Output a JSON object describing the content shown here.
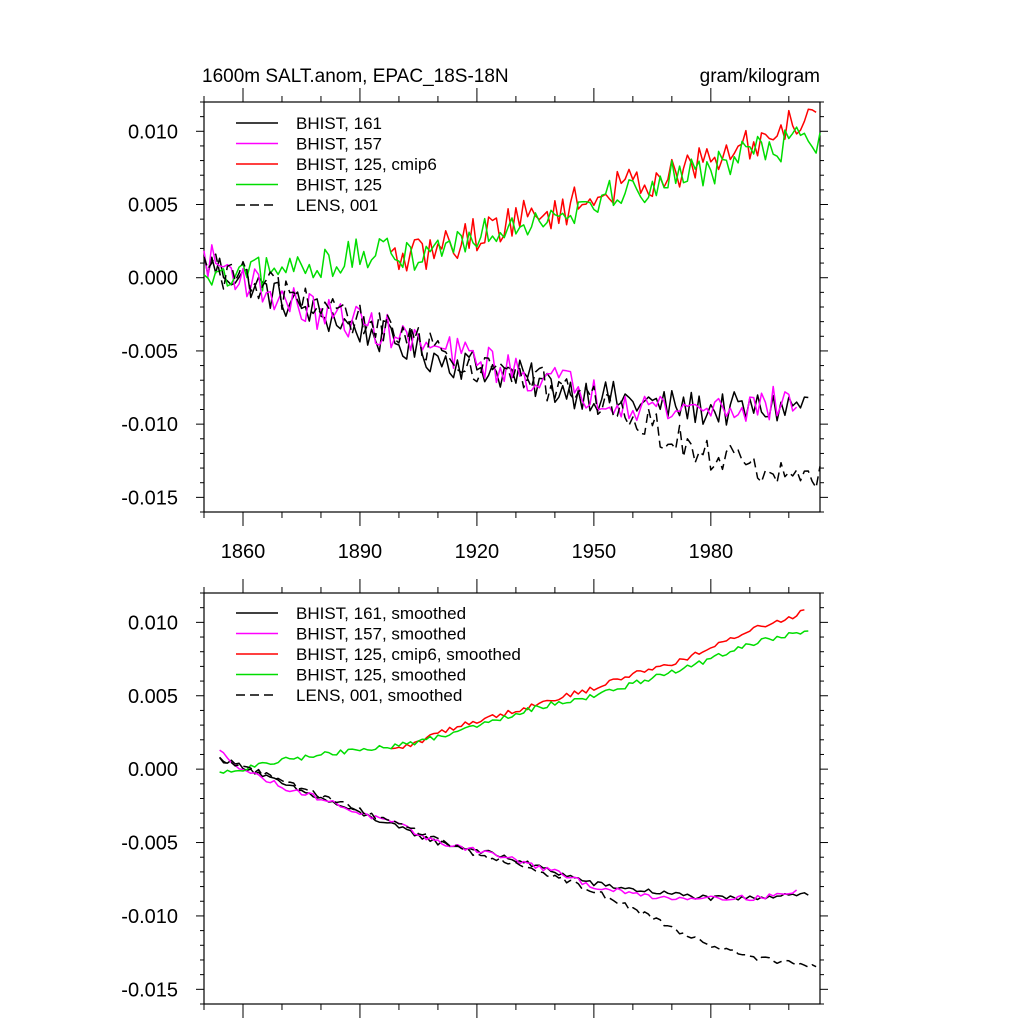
{
  "chart_data": [
    {
      "type": "line",
      "title": "1600m SALT.anom, EPAC_18S-18N",
      "units_label": "gram/kilogram",
      "xlim": [
        1850,
        2008
      ],
      "ylim": [
        -0.016,
        0.012
      ],
      "xticks": [
        1860,
        1890,
        1920,
        1950,
        1980
      ],
      "xtick_labels": [
        "1860",
        "1890",
        "1920",
        "1950",
        "1980"
      ],
      "yticks": [
        0.01,
        0.005,
        0.0,
        -0.005,
        -0.01,
        -0.015
      ],
      "ytick_labels": [
        "0.010",
        "0.005",
        "0.000",
        "-0.005",
        "-0.010",
        "-0.015"
      ],
      "legend": [
        "BHIST, 161",
        "BHIST, 157",
        "BHIST, 125, cmip6",
        "BHIST, 125",
        "LENS, 001"
      ],
      "series": [
        {
          "name": "BHIST, 161",
          "color": "#000000",
          "dash": "solid",
          "x_start": 1850,
          "x_end": 2005,
          "anchors": [
            [
              1850,
              0.001
            ],
            [
              1860,
              0.0
            ],
            [
              1870,
              -0.0015
            ],
            [
              1880,
              -0.0025
            ],
            [
              1890,
              -0.0035
            ],
            [
              1900,
              -0.0045
            ],
            [
              1910,
              -0.0055
            ],
            [
              1920,
              -0.006
            ],
            [
              1930,
              -0.0067
            ],
            [
              1940,
              -0.0075
            ],
            [
              1950,
              -0.008
            ],
            [
              1960,
              -0.0085
            ],
            [
              1970,
              -0.0088
            ],
            [
              1980,
              -0.009
            ],
            [
              1990,
              -0.009
            ],
            [
              2000,
              -0.0088
            ],
            [
              2005,
              -0.0085
            ]
          ]
        },
        {
          "name": "BHIST, 157",
          "color": "#ff00ff",
          "dash": "solid",
          "x_start": 1850,
          "x_end": 2002,
          "anchors": [
            [
              1850,
              0.0013
            ],
            [
              1855,
              0.0008
            ],
            [
              1860,
              0.0
            ],
            [
              1870,
              -0.0015
            ],
            [
              1880,
              -0.0025
            ],
            [
              1890,
              -0.003
            ],
            [
              1900,
              -0.004
            ],
            [
              1910,
              -0.005
            ],
            [
              1920,
              -0.0055
            ],
            [
              1930,
              -0.0065
            ],
            [
              1940,
              -0.007
            ],
            [
              1950,
              -0.008
            ],
            [
              1960,
              -0.0085
            ],
            [
              1970,
              -0.009
            ],
            [
              1980,
              -0.0088
            ],
            [
              1990,
              -0.0088
            ],
            [
              2000,
              -0.0085
            ],
            [
              2002,
              -0.0085
            ]
          ]
        },
        {
          "name": "BHIST, 125, cmip6",
          "color": "#ff0000",
          "dash": "solid",
          "x_start": 1898,
          "x_end": 2007,
          "anchors": [
            [
              1898,
              0.0012
            ],
            [
              1905,
              0.0015
            ],
            [
              1910,
              0.002
            ],
            [
              1920,
              0.003
            ],
            [
              1930,
              0.004
            ],
            [
              1940,
              0.0045
            ],
            [
              1950,
              0.0055
            ],
            [
              1960,
              0.0065
            ],
            [
              1970,
              0.007
            ],
            [
              1980,
              0.008
            ],
            [
              1990,
              0.009
            ],
            [
              2000,
              0.0105
            ],
            [
              2007,
              0.0115
            ]
          ]
        },
        {
          "name": "BHIST, 125",
          "color": "#00dd00",
          "dash": "solid",
          "x_start": 1850,
          "x_end": 2008,
          "anchors": [
            [
              1850,
              -0.0004
            ],
            [
              1860,
              0.0
            ],
            [
              1870,
              0.0005
            ],
            [
              1880,
              0.001
            ],
            [
              1890,
              0.0015
            ],
            [
              1900,
              0.0015
            ],
            [
              1910,
              0.002
            ],
            [
              1920,
              0.003
            ],
            [
              1930,
              0.0038
            ],
            [
              1940,
              0.0045
            ],
            [
              1950,
              0.0052
            ],
            [
              1960,
              0.006
            ],
            [
              1970,
              0.0068
            ],
            [
              1980,
              0.0075
            ],
            [
              1990,
              0.0085
            ],
            [
              2000,
              0.0092
            ],
            [
              2008,
              0.0095
            ]
          ]
        },
        {
          "name": "LENS, 001",
          "color": "#000000",
          "dash": "dashed",
          "x_start": 1850,
          "x_end": 2008,
          "anchors": [
            [
              1850,
              0.0008
            ],
            [
              1860,
              0.0
            ],
            [
              1870,
              -0.001
            ],
            [
              1880,
              -0.002
            ],
            [
              1890,
              -0.003
            ],
            [
              1900,
              -0.004
            ],
            [
              1910,
              -0.005
            ],
            [
              1920,
              -0.006
            ],
            [
              1930,
              -0.0068
            ],
            [
              1940,
              -0.0075
            ],
            [
              1950,
              -0.0085
            ],
            [
              1960,
              -0.0095
            ],
            [
              1970,
              -0.011
            ],
            [
              1980,
              -0.012
            ],
            [
              1990,
              -0.013
            ],
            [
              2000,
              -0.0135
            ],
            [
              2008,
              -0.014
            ]
          ]
        }
      ]
    },
    {
      "type": "line",
      "title": "",
      "xlim": [
        1850,
        2008
      ],
      "ylim": [
        -0.016,
        0.012
      ],
      "xticks": [
        1860,
        1890,
        1920,
        1950,
        1980
      ],
      "xtick_labels": [],
      "yticks": [
        0.01,
        0.005,
        0.0,
        -0.005,
        -0.01,
        -0.015
      ],
      "ytick_labels": [
        "0.010",
        "0.005",
        "0.000",
        "-0.005",
        "-0.010",
        "-0.015"
      ],
      "legend": [
        "BHIST, 161, smoothed",
        "BHIST, 157, smoothed",
        "BHIST, 125, cmip6, smoothed",
        "BHIST, 125, smoothed",
        "LENS, 001, smoothed"
      ],
      "series": [
        {
          "name": "BHIST, 161, smoothed",
          "color": "#000000",
          "dash": "solid",
          "x_start": 1854,
          "x_end": 2005,
          "anchors": [
            [
              1854,
              0.0007
            ],
            [
              1860,
              0.0002
            ],
            [
              1870,
              -0.001
            ],
            [
              1880,
              -0.002
            ],
            [
              1890,
              -0.003
            ],
            [
              1900,
              -0.004
            ],
            [
              1910,
              -0.005
            ],
            [
              1920,
              -0.0055
            ],
            [
              1930,
              -0.0062
            ],
            [
              1940,
              -0.007
            ],
            [
              1950,
              -0.0078
            ],
            [
              1960,
              -0.0082
            ],
            [
              1970,
              -0.0085
            ],
            [
              1980,
              -0.0088
            ],
            [
              1990,
              -0.0088
            ],
            [
              2000,
              -0.0085
            ],
            [
              2005,
              -0.0085
            ]
          ]
        },
        {
          "name": "BHIST, 157, smoothed",
          "color": "#ff00ff",
          "dash": "solid",
          "x_start": 1854,
          "x_end": 2002,
          "anchors": [
            [
              1854,
              0.0012
            ],
            [
              1860,
              0.0
            ],
            [
              1870,
              -0.0012
            ],
            [
              1880,
              -0.002
            ],
            [
              1890,
              -0.003
            ],
            [
              1900,
              -0.0038
            ],
            [
              1910,
              -0.005
            ],
            [
              1920,
              -0.0055
            ],
            [
              1930,
              -0.0062
            ],
            [
              1940,
              -0.007
            ],
            [
              1950,
              -0.008
            ],
            [
              1960,
              -0.0085
            ],
            [
              1970,
              -0.0088
            ],
            [
              1980,
              -0.0087
            ],
            [
              1990,
              -0.0088
            ],
            [
              2002,
              -0.0084
            ]
          ]
        },
        {
          "name": "BHIST, 125, cmip6, smoothed",
          "color": "#ff0000",
          "dash": "solid",
          "x_start": 1898,
          "x_end": 2004,
          "anchors": [
            [
              1898,
              0.0013
            ],
            [
              1905,
              0.0018
            ],
            [
              1910,
              0.0025
            ],
            [
              1920,
              0.0033
            ],
            [
              1930,
              0.004
            ],
            [
              1940,
              0.0048
            ],
            [
              1950,
              0.0055
            ],
            [
              1960,
              0.0065
            ],
            [
              1970,
              0.0072
            ],
            [
              1980,
              0.0082
            ],
            [
              1990,
              0.0095
            ],
            [
              2000,
              0.0103
            ],
            [
              2004,
              0.0108
            ]
          ]
        },
        {
          "name": "BHIST, 125, smoothed",
          "color": "#00dd00",
          "dash": "solid",
          "x_start": 1854,
          "x_end": 2005,
          "anchors": [
            [
              1854,
              -0.0003
            ],
            [
              1860,
              0.0
            ],
            [
              1870,
              0.0006
            ],
            [
              1880,
              0.001
            ],
            [
              1890,
              0.0013
            ],
            [
              1900,
              0.0016
            ],
            [
              1910,
              0.0022
            ],
            [
              1920,
              0.003
            ],
            [
              1930,
              0.0038
            ],
            [
              1940,
              0.0045
            ],
            [
              1950,
              0.005
            ],
            [
              1960,
              0.0058
            ],
            [
              1970,
              0.0066
            ],
            [
              1980,
              0.0075
            ],
            [
              1990,
              0.0085
            ],
            [
              2000,
              0.0092
            ],
            [
              2005,
              0.0094
            ]
          ]
        },
        {
          "name": "LENS, 001, smoothed",
          "color": "#000000",
          "dash": "dashed",
          "x_start": 1854,
          "x_end": 2007,
          "anchors": [
            [
              1854,
              0.0007
            ],
            [
              1860,
              0.0002
            ],
            [
              1870,
              -0.0008
            ],
            [
              1880,
              -0.0018
            ],
            [
              1890,
              -0.0028
            ],
            [
              1900,
              -0.0038
            ],
            [
              1910,
              -0.0048
            ],
            [
              1920,
              -0.0058
            ],
            [
              1930,
              -0.0065
            ],
            [
              1940,
              -0.0073
            ],
            [
              1950,
              -0.0083
            ],
            [
              1960,
              -0.0095
            ],
            [
              1970,
              -0.0108
            ],
            [
              1980,
              -0.012
            ],
            [
              1990,
              -0.0128
            ],
            [
              2000,
              -0.0132
            ],
            [
              2007,
              -0.0135
            ]
          ]
        }
      ]
    }
  ]
}
